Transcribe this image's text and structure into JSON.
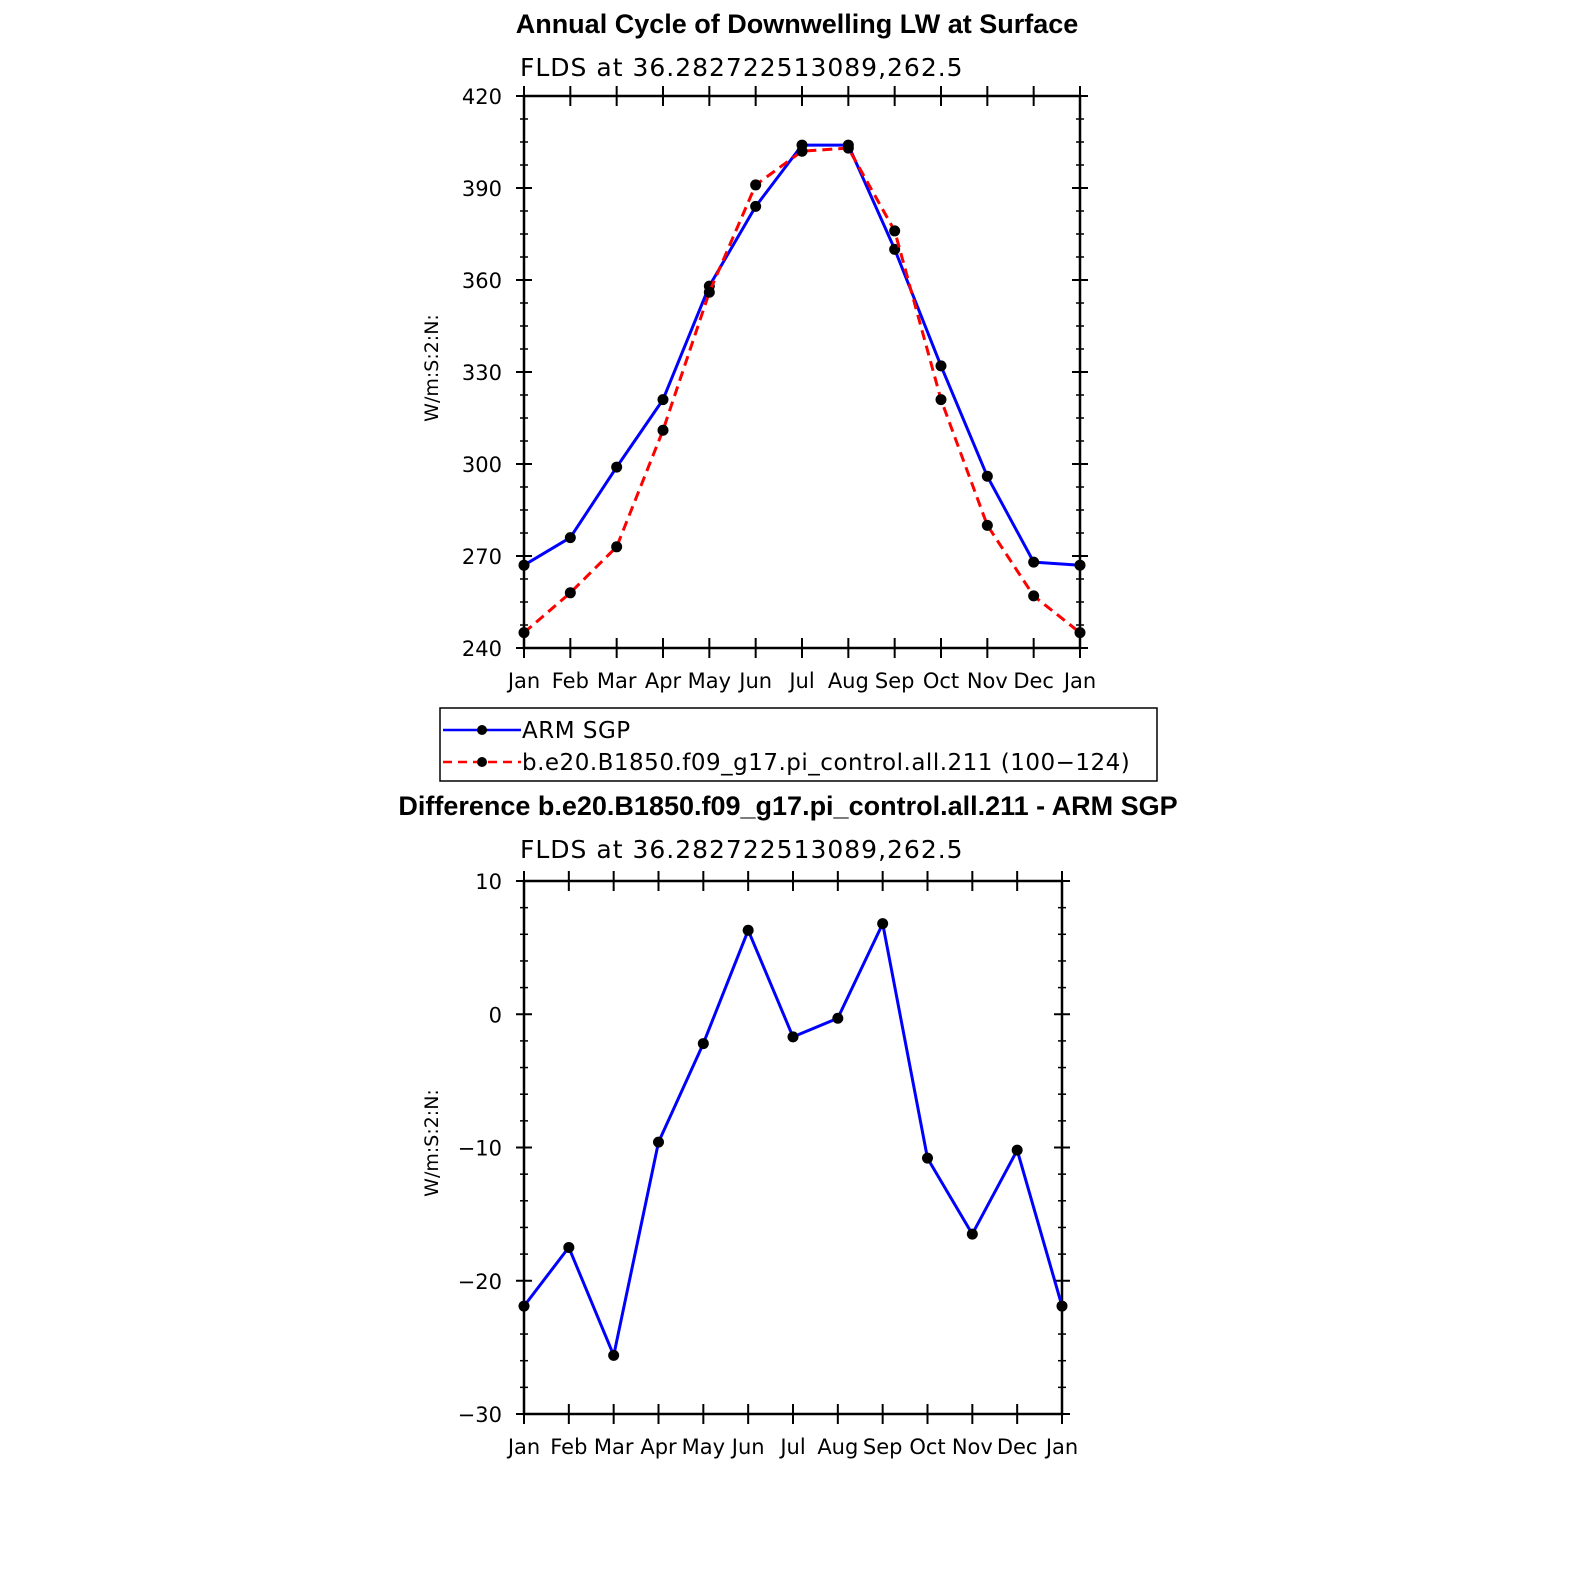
{
  "chart_data": [
    {
      "type": "line",
      "title": "Annual Cycle of Downwelling LW at Surface",
      "subtitle": "FLDS at 36.282722513089,262.5",
      "ylabel": "W/m:S:2:N:",
      "xlabel": "",
      "categories": [
        "Jan",
        "Feb",
        "Mar",
        "Apr",
        "May",
        "Jun",
        "Jul",
        "Aug",
        "Sep",
        "Oct",
        "Nov",
        "Dec",
        "Jan"
      ],
      "ylim": [
        240,
        420
      ],
      "yticks": [
        "240",
        "270",
        "300",
        "330",
        "360",
        "390",
        "420"
      ],
      "grid": false,
      "legend_position": "bottom",
      "series": [
        {
          "name": "ARM SGP",
          "color": "#0000ff",
          "dash": "solid",
          "values": [
            267,
            276,
            299,
            321,
            358,
            384,
            404,
            404,
            370,
            332,
            296,
            268,
            267
          ]
        },
        {
          "name": "b.e20.B1850.f09_g17.pi_control.all.211 (100−124)",
          "color": "#ff0000",
          "dash": "dashed",
          "values": [
            245,
            258,
            273,
            311,
            356,
            391,
            402,
            403,
            376,
            321,
            280,
            257,
            245
          ]
        }
      ]
    },
    {
      "type": "line",
      "title": "Difference b.e20.B1850.f09_g17.pi_control.all.211 - ARM SGP",
      "subtitle": "FLDS at 36.282722513089,262.5",
      "ylabel": "W/m:S:2:N:",
      "xlabel": "",
      "categories": [
        "Jan",
        "Feb",
        "Mar",
        "Apr",
        "May",
        "Jun",
        "Jul",
        "Aug",
        "Sep",
        "Oct",
        "Nov",
        "Dec",
        "Jan"
      ],
      "ylim": [
        -30,
        10
      ],
      "yticks": [
        "−30",
        "−20",
        "−10",
        "0",
        "10"
      ],
      "grid": false,
      "series": [
        {
          "color": "#0000ff",
          "dash": "solid",
          "values": [
            -21.9,
            -17.5,
            -25.6,
            -9.6,
            -2.2,
            6.3,
            -1.7,
            -0.3,
            6.8,
            -10.8,
            -16.5,
            -10.2,
            -21.9
          ]
        }
      ]
    }
  ]
}
